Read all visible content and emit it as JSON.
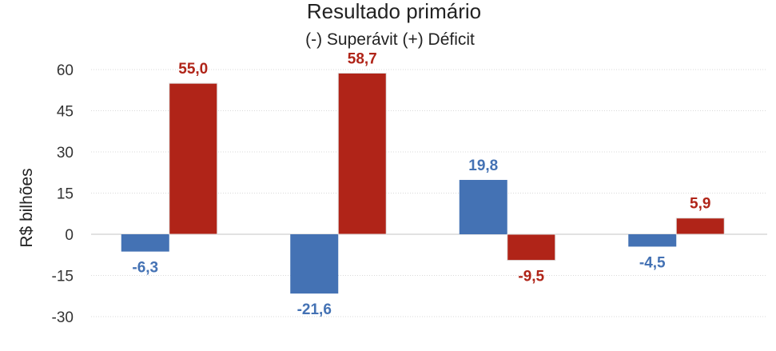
{
  "chart_data": {
    "type": "bar",
    "title": "Resultado primário",
    "subtitle": "(-) Superávit  (+) Déficit",
    "xlabel": "",
    "ylabel": "R$ bilhões",
    "ylim": [
      -30,
      60
    ],
    "yticks": [
      60,
      45,
      30,
      15,
      0,
      -15,
      -30
    ],
    "categories": [
      "",
      "",
      "",
      ""
    ],
    "grid": true,
    "legend": "none",
    "series": [
      {
        "color": "#4472b4",
        "values": [
          -6.3,
          -21.6,
          19.8,
          -4.5
        ],
        "labels": [
          "-6,3",
          "-21,6",
          "19,8",
          "-4,5"
        ]
      },
      {
        "color": "#b02418",
        "values": [
          55.0,
          58.7,
          -9.5,
          5.9
        ],
        "labels": [
          "55,0",
          "58,7",
          "-9,5",
          "5,9"
        ]
      }
    ]
  }
}
